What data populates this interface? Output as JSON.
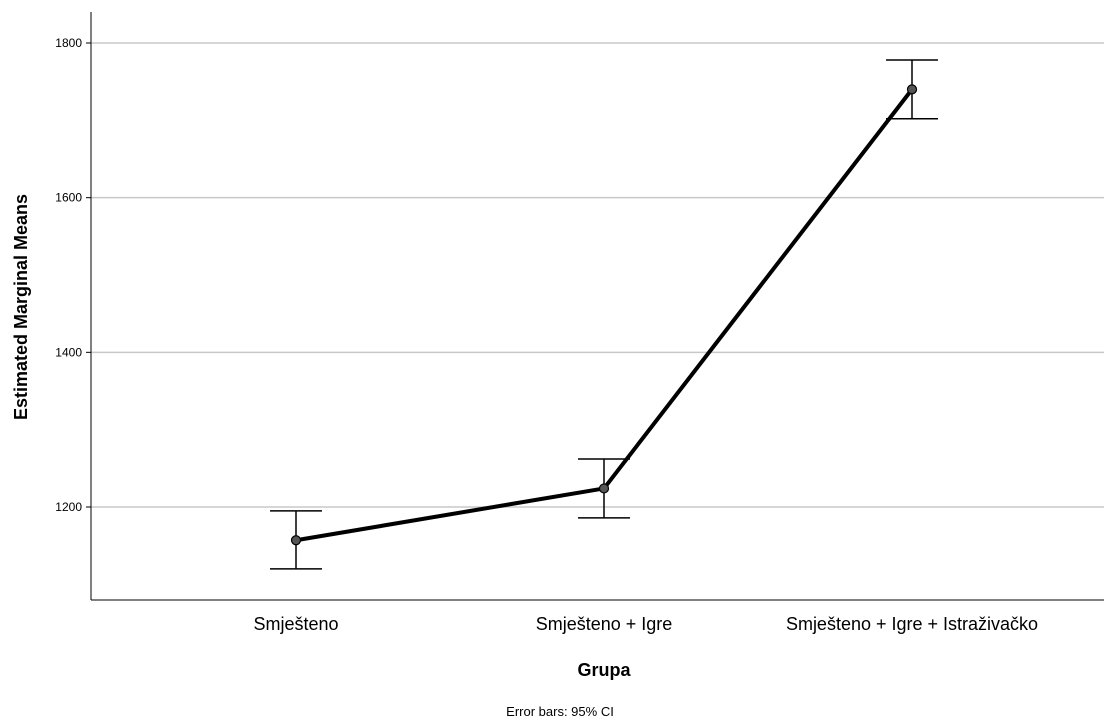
{
  "chart_data": {
    "type": "line",
    "title": "",
    "xlabel": "Grupa",
    "ylabel": "Estimated Marginal Means",
    "categories": [
      "Smješteno",
      "Smješteno + Igre",
      "Smješteno + Igre + Istraživačko"
    ],
    "values": [
      1157,
      1224,
      1740
    ],
    "ci_lower": [
      1120,
      1186,
      1702
    ],
    "ci_upper": [
      1195,
      1262,
      1778
    ],
    "yticks": [
      1200,
      1400,
      1600,
      1800
    ],
    "ylim": [
      1080,
      1840
    ],
    "grid": "horizontal",
    "footnote": "Error bars: 95% CI"
  }
}
